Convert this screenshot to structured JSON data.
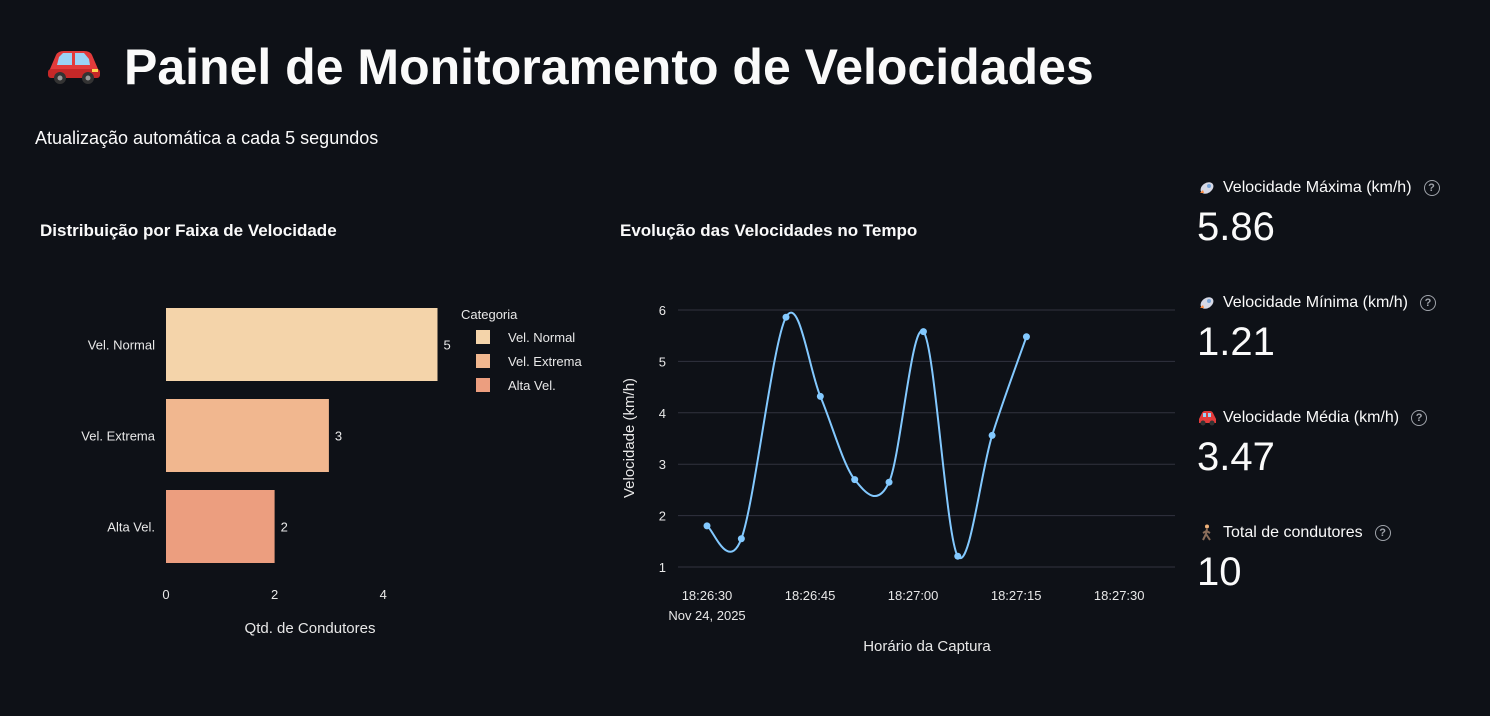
{
  "header": {
    "title": "Painel de Monitoramento de Velocidades",
    "icon": "red-car-icon",
    "subtitle": "Atualização automática a cada 5 segundos"
  },
  "bar_chart_title": "Distribuição por Faixa de Velocidade",
  "line_chart_title": "Evolução das Velocidades no Tempo",
  "metrics": [
    {
      "icon": "rocket-icon",
      "label": "Velocidade Máxima (km/h)",
      "value": "5.86"
    },
    {
      "icon": "rocket-icon",
      "label": "Velocidade Mínima (km/h)",
      "value": "1.21"
    },
    {
      "icon": "car-icon",
      "label": "Velocidade Média (km/h)",
      "value": "3.47"
    },
    {
      "icon": "walking-person-icon",
      "label": "Total de condutores",
      "value": "10"
    }
  ],
  "chart_data": [
    {
      "type": "bar",
      "orientation": "horizontal",
      "categories": [
        "Vel. Normal",
        "Vel. Extrema",
        "Alta Vel."
      ],
      "values": [
        5,
        3,
        2
      ],
      "colors": [
        "#f4d4aa",
        "#f1b78f",
        "#ec9e7f"
      ],
      "xlabel": "Qtd. de Condutores",
      "ylabel": "",
      "xlim": [
        0,
        5
      ],
      "xticks": [
        "0",
        "2",
        "4"
      ],
      "legend_title": "Categoria",
      "legend": [
        "Vel. Normal",
        "Vel. Extrema",
        "Alta Vel."
      ],
      "legend_position": "right"
    },
    {
      "type": "line",
      "x_seconds": [
        0,
        5,
        11.5,
        16.5,
        21.5,
        26.5,
        31.5,
        36.5,
        41.5,
        46.5
      ],
      "y": [
        1.8,
        1.55,
        5.86,
        4.32,
        2.7,
        2.65,
        5.58,
        1.21,
        3.56,
        5.48
      ],
      "x_tick_seconds": [
        0,
        15,
        30,
        45,
        60
      ],
      "x_ticks": [
        "18:26:30",
        "18:26:45",
        "18:27:00",
        "18:27:15",
        "18:27:30"
      ],
      "x_date_label": "Nov 24, 2025",
      "yticks": [
        1,
        2,
        3,
        4,
        5,
        6
      ],
      "ylim": [
        0.8,
        6.1
      ],
      "xlabel": "Horário da Captura",
      "ylabel": "Velocidade (km/h)",
      "line_color": "#83c9ff",
      "grid": true
    }
  ]
}
